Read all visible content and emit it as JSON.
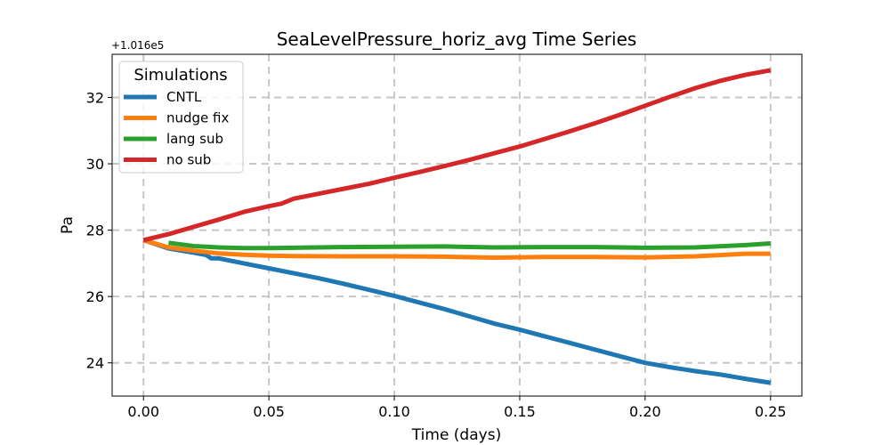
{
  "chart_data": {
    "type": "line",
    "title": "SeaLevelPressure_horiz_avg Time Series",
    "xlabel": "Time (days)",
    "ylabel": "Pa",
    "y_offset_label": "+1.016e5",
    "xlim": [
      -0.0125,
      0.2625
    ],
    "ylim": [
      23.0,
      33.3
    ],
    "xticks": [
      0.0,
      0.05,
      0.1,
      0.15,
      0.2,
      0.25
    ],
    "xtick_labels": [
      "0.00",
      "0.05",
      "0.10",
      "0.15",
      "0.20",
      "0.25"
    ],
    "yticks": [
      24,
      26,
      28,
      30,
      32
    ],
    "ytick_labels": [
      "24",
      "26",
      "28",
      "30",
      "32"
    ],
    "grid": true,
    "legend": {
      "title": "Simulations",
      "position": "upper-left"
    },
    "series": [
      {
        "name": "CNTL",
        "color": "#1f77b4",
        "x": [
          0.0,
          0.01,
          0.02,
          0.025,
          0.027,
          0.03,
          0.04,
          0.05,
          0.06,
          0.07,
          0.08,
          0.09,
          0.1,
          0.11,
          0.12,
          0.13,
          0.14,
          0.15,
          0.16,
          0.17,
          0.18,
          0.19,
          0.2,
          0.21,
          0.22,
          0.23,
          0.24,
          0.25
        ],
        "y": [
          27.7,
          27.45,
          27.32,
          27.25,
          27.15,
          27.15,
          27.0,
          26.85,
          26.7,
          26.55,
          26.38,
          26.2,
          26.02,
          25.82,
          25.62,
          25.4,
          25.18,
          25.0,
          24.8,
          24.6,
          24.4,
          24.2,
          24.0,
          23.87,
          23.75,
          23.65,
          23.52,
          23.4
        ]
      },
      {
        "name": "nudge fix",
        "color": "#ff7f0e",
        "x": [
          0.0,
          0.01,
          0.02,
          0.03,
          0.04,
          0.05,
          0.06,
          0.08,
          0.1,
          0.12,
          0.14,
          0.16,
          0.18,
          0.2,
          0.22,
          0.24,
          0.25
        ],
        "y": [
          27.7,
          27.48,
          27.38,
          27.3,
          27.26,
          27.23,
          27.22,
          27.21,
          27.21,
          27.2,
          27.17,
          27.19,
          27.19,
          27.18,
          27.21,
          27.29,
          27.29
        ]
      },
      {
        "name": "lang sub",
        "color": "#2ca02c",
        "x": [
          0.01,
          0.02,
          0.03,
          0.04,
          0.05,
          0.06,
          0.08,
          0.1,
          0.12,
          0.14,
          0.16,
          0.18,
          0.2,
          0.22,
          0.24,
          0.25
        ],
        "y": [
          27.62,
          27.52,
          27.48,
          27.46,
          27.46,
          27.47,
          27.49,
          27.5,
          27.51,
          27.48,
          27.49,
          27.49,
          27.47,
          27.48,
          27.55,
          27.6
        ]
      },
      {
        "name": "no sub",
        "color": "#d62728",
        "x": [
          0.0,
          0.01,
          0.02,
          0.03,
          0.04,
          0.05,
          0.055,
          0.06,
          0.07,
          0.08,
          0.09,
          0.1,
          0.11,
          0.12,
          0.13,
          0.14,
          0.15,
          0.16,
          0.17,
          0.18,
          0.19,
          0.2,
          0.21,
          0.22,
          0.23,
          0.24,
          0.25
        ],
        "y": [
          27.7,
          27.88,
          28.1,
          28.32,
          28.55,
          28.72,
          28.8,
          28.95,
          29.1,
          29.25,
          29.4,
          29.58,
          29.75,
          29.93,
          30.12,
          30.32,
          30.52,
          30.75,
          30.98,
          31.22,
          31.48,
          31.75,
          32.02,
          32.28,
          32.5,
          32.68,
          32.82
        ]
      }
    ]
  }
}
